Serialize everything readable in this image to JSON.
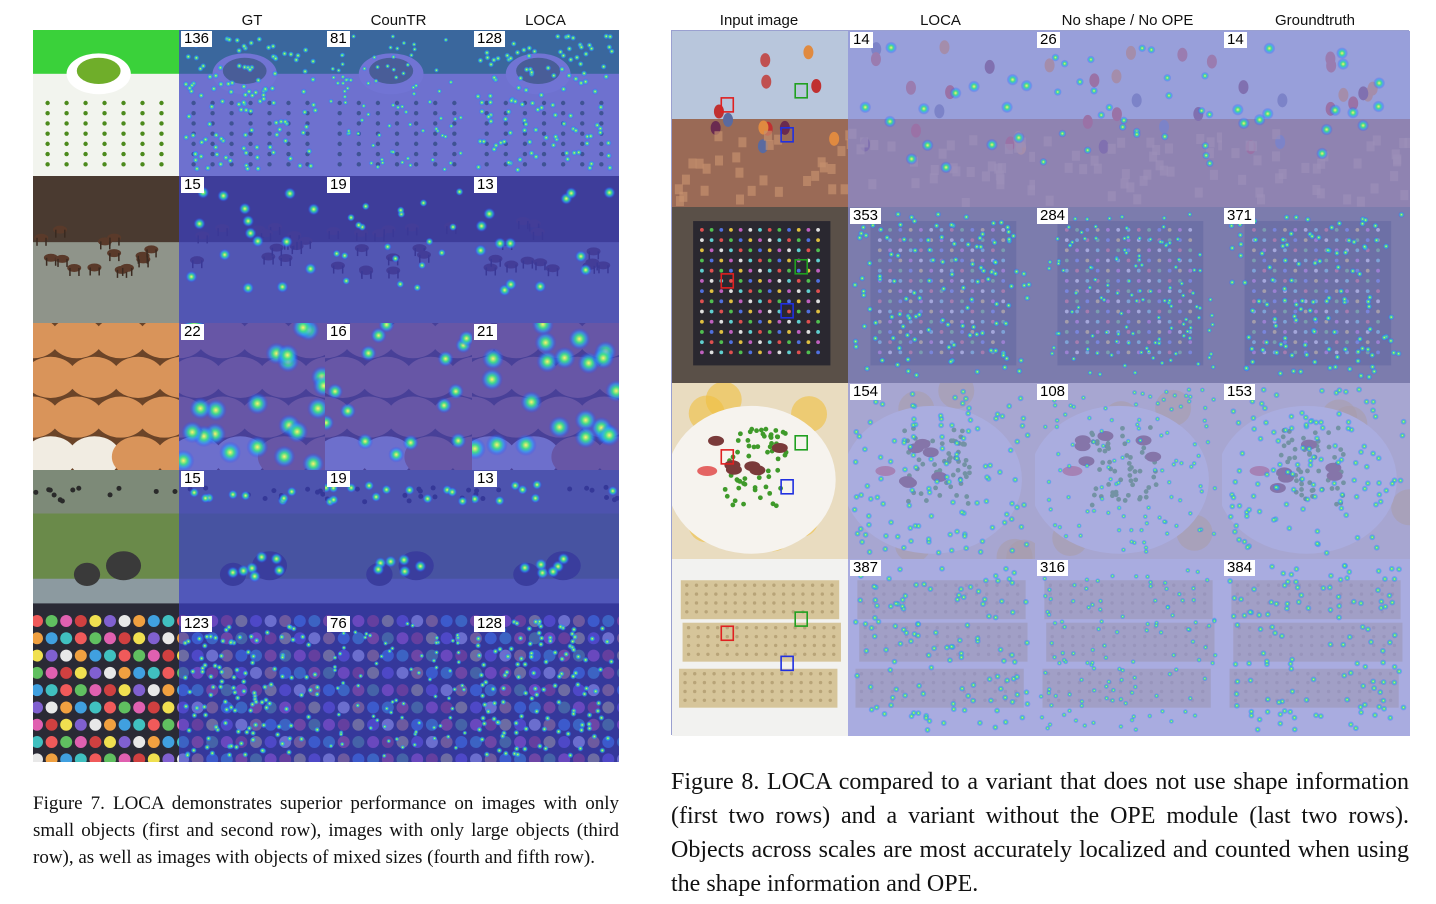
{
  "figure7": {
    "headers": [
      "",
      "GT",
      "CounTR",
      "LOCA"
    ],
    "rows": [
      {
        "scene": "peas",
        "counts": [
          "136",
          "81",
          "128"
        ]
      },
      {
        "scene": "deer",
        "counts": [
          "15",
          "19",
          "13"
        ]
      },
      {
        "scene": "eggs",
        "counts": [
          "22",
          "16",
          "21"
        ]
      },
      {
        "scene": "elephants",
        "counts": [
          "15",
          "19",
          "13"
        ]
      },
      {
        "scene": "markers",
        "counts": [
          "123",
          "76",
          "128"
        ]
      }
    ],
    "caption": "Figure 7.  LOCA demonstrates superior performance on images with only small objects (first and second row), images with only large objects (third row), as well as images with objects of mixed sizes (fourth and fifth row)."
  },
  "figure8": {
    "headers": [
      "Input image",
      "LOCA",
      "No shape / No OPE",
      "Groundtruth"
    ],
    "rows": [
      {
        "scene": "balloons",
        "counts": [
          "14",
          "26",
          "14"
        ]
      },
      {
        "scene": "beads",
        "counts": [
          "353",
          "284",
          "371"
        ]
      },
      {
        "scene": "plate-peas",
        "counts": [
          "154",
          "108",
          "153"
        ]
      },
      {
        "scene": "lego",
        "counts": [
          "387",
          "316",
          "384"
        ]
      }
    ],
    "caption": "Figure 8. LOCA compared to a variant that does not use shape information (first two rows) and a variant without the OPE module (last two rows).  Objects across scales are most accurately localized and counted when using the shape information and OPE."
  },
  "colors": {
    "overlay_blue": "#3a3fc4",
    "hot": "#ffef3a",
    "lavender": "#8a8fd8"
  }
}
